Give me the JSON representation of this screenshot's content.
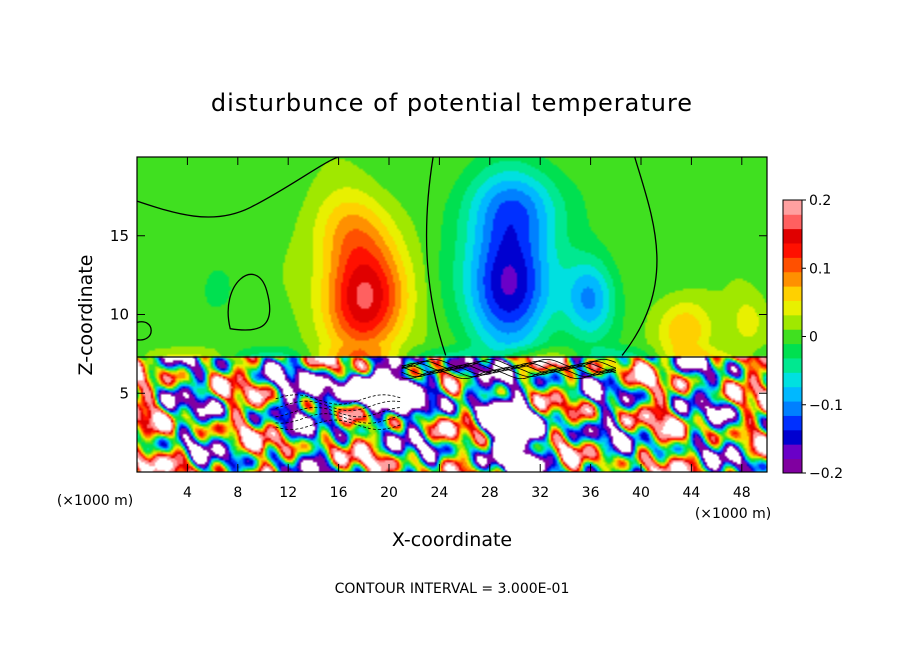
{
  "chart_data": {
    "type": "heatmap",
    "title": "disturbunce of potential temperature",
    "xlabel": "X-coordinate",
    "ylabel": "Z-coordinate",
    "x_unit_left": "(×1000 m)",
    "x_unit_right": "(×1000 m)",
    "footer": "CONTOUR INTERVAL = 3.000E-01",
    "xlim": [
      0,
      50
    ],
    "ylim": [
      0,
      20
    ],
    "x_ticks": [
      4,
      8,
      12,
      16,
      20,
      24,
      28,
      32,
      36,
      40,
      44,
      48
    ],
    "y_ticks": [
      5,
      10,
      15
    ],
    "interface_z": 7.3,
    "colorbar": {
      "min": -0.2,
      "max": 0.2,
      "ticks": [
        {
          "v": 0.2,
          "label": "0.2"
        },
        {
          "v": 0.1,
          "label": "0.1"
        },
        {
          "v": 0,
          "label": "0"
        },
        {
          "v": -0.1,
          "label": "−0.1"
        },
        {
          "v": -0.2,
          "label": "−0.2"
        }
      ],
      "colors": [
        "#8000a0",
        "#6a00c8",
        "#0000d0",
        "#0030ff",
        "#0080ff",
        "#00b8ff",
        "#00e0e0",
        "#00e890",
        "#00e050",
        "#40e020",
        "#a0e800",
        "#e8f000",
        "#ffd000",
        "#ff9000",
        "#ff5000",
        "#ff1000",
        "#e00000",
        "#ff6060",
        "#ffa0a0"
      ]
    },
    "upper_anomalies": [
      {
        "name": "warm-plume",
        "x": 18,
        "z": 11,
        "sx": 3.2,
        "sz": 3.6,
        "value": 0.16
      },
      {
        "name": "warm-plume-top",
        "x": 17,
        "z": 15.5,
        "sx": 3.0,
        "sz": 2.6,
        "value": 0.06
      },
      {
        "name": "cold-plume",
        "x": 29.5,
        "z": 12,
        "sx": 3.3,
        "sz": 4.2,
        "value": -0.17
      },
      {
        "name": "cold-plume-top",
        "x": 30,
        "z": 17,
        "sx": 4.0,
        "sz": 2.5,
        "value": -0.08
      },
      {
        "name": "cold-tongue",
        "x": 36,
        "z": 11,
        "sx": 2.0,
        "sz": 2.6,
        "value": -0.1
      },
      {
        "name": "warm-right",
        "x": 43.5,
        "z": 9,
        "sx": 2.2,
        "sz": 2.0,
        "value": 0.07
      },
      {
        "name": "warm-far-right",
        "x": 48.5,
        "z": 9.5,
        "sx": 1.5,
        "sz": 1.8,
        "value": 0.04
      },
      {
        "name": "green-left",
        "x": 6,
        "z": 11,
        "sx": 3.0,
        "sz": 3.0,
        "value": -0.01
      }
    ]
  }
}
